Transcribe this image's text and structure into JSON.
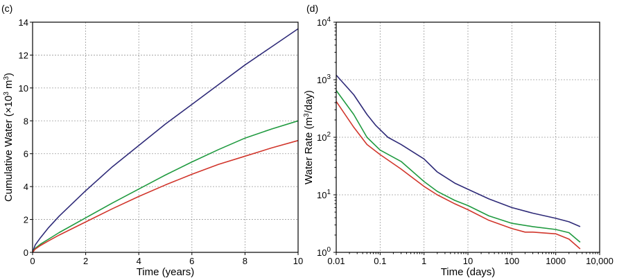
{
  "chart_data": [
    {
      "panel_label": "(c)",
      "type": "line",
      "xlabel": "Time (years)",
      "ylabel_parts": [
        "Cumulative Water (×10",
        "3",
        " m",
        "3",
        ")"
      ],
      "xlim": [
        0,
        10
      ],
      "ylim": [
        0,
        14
      ],
      "xticks": [
        0,
        2,
        4,
        6,
        8,
        10
      ],
      "yticks": [
        0,
        2,
        4,
        6,
        8,
        10,
        12,
        14
      ],
      "grid": true,
      "series": [
        {
          "name": "blue",
          "color": "#2e2a78",
          "x": [
            0,
            0.1,
            0.3,
            0.6,
            1,
            2,
            3,
            4,
            5,
            6,
            7,
            8,
            9,
            10
          ],
          "y": [
            0,
            0.45,
            0.9,
            1.5,
            2.2,
            3.75,
            5.2,
            6.5,
            7.8,
            9.0,
            10.2,
            11.4,
            12.5,
            13.6
          ]
        },
        {
          "name": "green",
          "color": "#1f9a3f",
          "x": [
            0,
            0.1,
            0.3,
            0.6,
            1,
            2,
            3,
            4,
            5,
            6,
            7,
            8,
            9,
            10
          ],
          "y": [
            0,
            0.25,
            0.5,
            0.8,
            1.2,
            2.1,
            3.0,
            3.85,
            4.7,
            5.5,
            6.25,
            6.95,
            7.5,
            8.0
          ]
        },
        {
          "name": "red",
          "color": "#d1352b",
          "x": [
            0,
            0.1,
            0.3,
            0.6,
            1,
            2,
            3,
            4,
            5,
            6,
            7,
            8,
            9,
            10
          ],
          "y": [
            0,
            0.2,
            0.42,
            0.7,
            1.05,
            1.85,
            2.65,
            3.4,
            4.1,
            4.75,
            5.35,
            5.85,
            6.35,
            6.8
          ]
        }
      ]
    },
    {
      "panel_label": "(d)",
      "type": "line",
      "xlabel": "Time (days)",
      "ylabel_parts": [
        "Water Rate (m",
        "3",
        "/day)"
      ],
      "xscale": "log",
      "yscale": "log",
      "xlim": [
        0.01,
        10000
      ],
      "ylim": [
        1,
        10000
      ],
      "xticks": [
        0.01,
        0.1,
        1,
        10,
        100,
        1000,
        10000
      ],
      "xtick_labels": [
        "0.01",
        "0.1",
        "1",
        "10",
        "100",
        "1000",
        "10,000"
      ],
      "yticks": [
        1,
        10,
        100,
        1000,
        10000
      ],
      "ytick_exponents": [
        "0",
        "1",
        "2",
        "3",
        "4"
      ],
      "ytick_base": "10",
      "grid": true,
      "series": [
        {
          "name": "blue",
          "color": "#2e2a78",
          "x": [
            0.01,
            0.025,
            0.05,
            0.08,
            0.15,
            0.3,
            1,
            2,
            5,
            10,
            30,
            100,
            300,
            1000,
            2000,
            3600
          ],
          "y": [
            1200,
            550,
            250,
            160,
            100,
            75,
            42,
            25,
            16,
            12.5,
            8.5,
            6,
            4.8,
            3.9,
            3.4,
            2.8
          ]
        },
        {
          "name": "green",
          "color": "#1f9a3f",
          "x": [
            0.01,
            0.025,
            0.05,
            0.1,
            0.3,
            1,
            2,
            5,
            10,
            30,
            100,
            300,
            1000,
            2000,
            3600
          ],
          "y": [
            650,
            250,
            100,
            60,
            38,
            17,
            11.5,
            8,
            6.5,
            4.3,
            3.2,
            2.8,
            2.5,
            2.2,
            1.5
          ]
        },
        {
          "name": "red",
          "color": "#d1352b",
          "x": [
            0.01,
            0.025,
            0.05,
            0.1,
            0.3,
            1,
            2,
            5,
            10,
            30,
            100,
            200,
            300,
            1000,
            2000,
            3600
          ],
          "y": [
            420,
            150,
            75,
            50,
            28,
            14,
            10,
            7,
            5.5,
            3.6,
            2.6,
            2.25,
            2.25,
            2.1,
            1.7,
            1.15
          ]
        }
      ]
    }
  ]
}
